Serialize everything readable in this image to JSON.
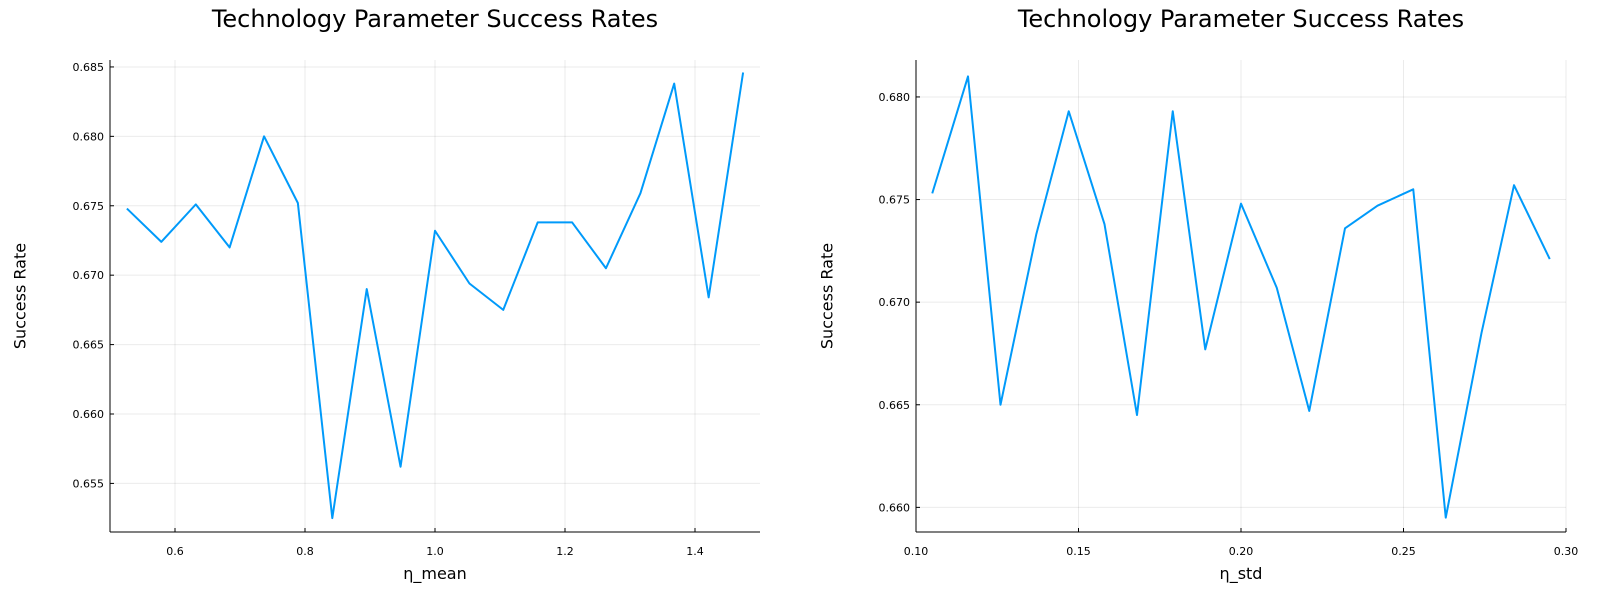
{
  "chart_data": [
    {
      "type": "line",
      "title": "Technology Parameter Success Rates",
      "xlabel": "η_mean",
      "ylabel": "Success Rate",
      "xlim": [
        0.5,
        1.5
      ],
      "ylim": [
        0.6515,
        0.6855
      ],
      "xticks": [
        0.6,
        0.8,
        1.0,
        1.2,
        1.4
      ],
      "xtick_labels": [
        "0.6",
        "0.8",
        "1.0",
        "1.2",
        "1.4"
      ],
      "yticks": [
        0.655,
        0.66,
        0.665,
        0.67,
        0.675,
        0.68,
        0.685
      ],
      "ytick_labels": [
        "0.655",
        "0.660",
        "0.665",
        "0.670",
        "0.675",
        "0.680",
        "0.685"
      ],
      "grid": true,
      "color": "#009AFA",
      "x": [
        0.526,
        0.579,
        0.632,
        0.684,
        0.737,
        0.789,
        0.842,
        0.895,
        0.947,
        1.0,
        1.053,
        1.105,
        1.158,
        1.211,
        1.263,
        1.316,
        1.368,
        1.421,
        1.474
      ],
      "values": [
        0.6748,
        0.6724,
        0.6751,
        0.672,
        0.68,
        0.6752,
        0.6525,
        0.669,
        0.6562,
        0.6732,
        0.6694,
        0.6675,
        0.6738,
        0.6738,
        0.6705,
        0.6759,
        0.6838,
        0.6684,
        0.6846
      ]
    },
    {
      "type": "line",
      "title": "Technology Parameter Success Rates",
      "xlabel": "η_std",
      "ylabel": "Success Rate",
      "xlim": [
        0.1,
        0.3
      ],
      "ylim": [
        0.6588,
        0.6818
      ],
      "xticks": [
        0.1,
        0.15,
        0.2,
        0.25,
        0.3
      ],
      "xtick_labels": [
        "0.10",
        "0.15",
        "0.20",
        "0.25",
        "0.30"
      ],
      "yticks": [
        0.66,
        0.665,
        0.67,
        0.675,
        0.68
      ],
      "ytick_labels": [
        "0.660",
        "0.665",
        "0.670",
        "0.675",
        "0.680"
      ],
      "grid": true,
      "color": "#009AFA",
      "x": [
        0.105,
        0.116,
        0.126,
        0.137,
        0.147,
        0.158,
        0.168,
        0.179,
        0.189,
        0.2,
        0.211,
        0.221,
        0.232,
        0.242,
        0.253,
        0.263,
        0.274,
        0.284,
        0.295
      ],
      "values": [
        0.6753,
        0.681,
        0.665,
        0.6733,
        0.6793,
        0.6738,
        0.6645,
        0.6793,
        0.6677,
        0.6748,
        0.6707,
        0.6647,
        0.6736,
        0.6747,
        0.6755,
        0.6595,
        0.6685,
        0.6757,
        0.6721
      ]
    }
  ]
}
